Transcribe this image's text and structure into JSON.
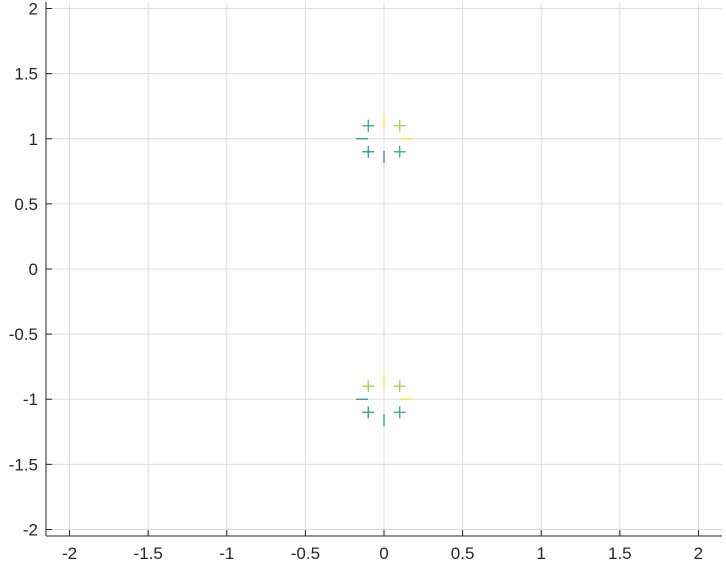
{
  "chart_data": {
    "type": "scatter",
    "title": "",
    "xlabel": "",
    "ylabel": "",
    "xlim": [
      -2.15,
      2.15
    ],
    "ylim": [
      -2.05,
      2.05
    ],
    "grid": true,
    "x_ticks": [
      -2,
      -1.5,
      -1,
      -0.5,
      0,
      0.5,
      1,
      1.5,
      2
    ],
    "x_tick_labels": [
      "-2",
      "-1.5",
      "-1",
      "-0.5",
      "0",
      "0.5",
      "1",
      "1.5",
      "2"
    ],
    "y_ticks": [
      2,
      1.5,
      1,
      0.5,
      0,
      -0.5,
      -1,
      -1.5,
      -2
    ],
    "y_tick_labels": [
      "2",
      "1.5",
      "1",
      "0.5",
      "0",
      "-0.5",
      "-1",
      "-1.5",
      "-2"
    ],
    "marker": "+",
    "colors": {
      "axes": "#262626",
      "grid": "#dcdcdc",
      "green": "#2db27d",
      "teal": "#1fa187",
      "blue": "#2c7fb8",
      "lightgreen": "#a0da39",
      "yellow": "#fde725"
    },
    "series": [
      {
        "values": [
          {
            "x": -0.1,
            "y": 1.1,
            "color": "green"
          },
          {
            "x": -0.14,
            "y": 1.0,
            "color": "teal",
            "marker": "_"
          },
          {
            "x": -0.1,
            "y": 0.9,
            "color": "teal"
          },
          {
            "x": 0.0,
            "y": 0.86,
            "color": "blue",
            "marker": "|"
          },
          {
            "x": 0.1,
            "y": 0.9,
            "color": "green"
          },
          {
            "x": 0.14,
            "y": 1.0,
            "color": "yellow",
            "marker": "_"
          },
          {
            "x": 0.1,
            "y": 1.1,
            "color": "lightgreen"
          },
          {
            "x": 0.0,
            "y": 1.13,
            "color": "yellow",
            "marker": "|"
          }
        ]
      },
      {
        "values": [
          {
            "x": -0.1,
            "y": -0.9,
            "color": "lightgreen"
          },
          {
            "x": -0.14,
            "y": -1.0,
            "color": "teal",
            "marker": "_"
          },
          {
            "x": -0.1,
            "y": -1.1,
            "color": "teal"
          },
          {
            "x": 0.0,
            "y": -1.16,
            "color": "teal",
            "marker": "|"
          },
          {
            "x": 0.1,
            "y": -1.1,
            "color": "green"
          },
          {
            "x": 0.14,
            "y": -1.0,
            "color": "yellow",
            "marker": "_"
          },
          {
            "x": 0.1,
            "y": -0.9,
            "color": "lightgreen"
          },
          {
            "x": 0.0,
            "y": -0.87,
            "color": "yellow",
            "marker": "|"
          }
        ]
      }
    ]
  }
}
